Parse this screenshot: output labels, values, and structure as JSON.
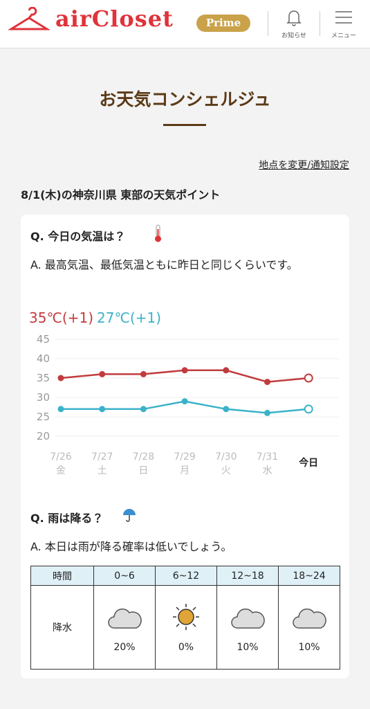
{
  "header": {
    "logo": "airCloset",
    "badge": "Prime",
    "notifications": "お知らせ",
    "menu": "メニュー"
  },
  "page": {
    "title": "お天気コンシェルジュ",
    "settings_link": "地点を変更/通知設定",
    "heading": "8/1(木)の神奈川県 東部の天気ポイント"
  },
  "temperature": {
    "question": "Q. 今日の気温は？",
    "answer": "A. 最高気温、最低気温ともに昨日と同じくらいです。",
    "high": "35℃(+1)",
    "low": "27℃(+1)"
  },
  "chart_data": {
    "type": "line",
    "categories": [
      "7/26\n金",
      "7/27\n土",
      "7/28\n日",
      "7/29\n月",
      "7/30\n火",
      "7/31\n水",
      "今日"
    ],
    "series": [
      {
        "color": "#c23b3d",
        "values": [
          35,
          36,
          36,
          37,
          37,
          34,
          35
        ]
      },
      {
        "color": "#3ab2c9",
        "values": [
          27,
          27,
          27,
          29,
          27,
          26,
          27
        ]
      }
    ],
    "ylim": [
      20,
      45
    ],
    "yticks": [
      20,
      25,
      30,
      35,
      40,
      45
    ],
    "grid": true
  },
  "rain": {
    "question": "Q. 雨は降る？",
    "answer": "A. 本日は雨が降る確率は低いでしょう。",
    "table": {
      "header": [
        "時間",
        "0~6",
        "6~12",
        "12~18",
        "18~24"
      ],
      "row_label": "降水",
      "values": [
        "20%",
        "0%",
        "10%",
        "10%"
      ]
    }
  }
}
